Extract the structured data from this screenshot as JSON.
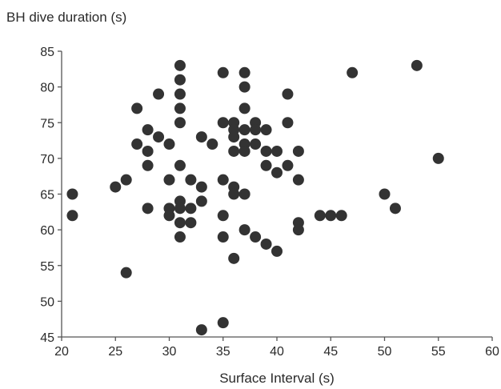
{
  "chart_data": {
    "type": "scatter",
    "title": "",
    "xlabel": "Surface Interval (s)",
    "ylabel": "BH dive duration (s)",
    "xlim": [
      20,
      60
    ],
    "ylim": [
      45,
      85
    ],
    "xticks": [
      20,
      25,
      30,
      35,
      40,
      45,
      50,
      55,
      60
    ],
    "yticks": [
      45,
      50,
      55,
      60,
      65,
      70,
      75,
      80,
      85
    ],
    "xtick_labels": [
      "20",
      "25",
      "30",
      "35",
      "40",
      "45",
      "50",
      "55",
      "60"
    ],
    "ytick_labels": [
      "45",
      "50",
      "55",
      "60",
      "65",
      "70",
      "75",
      "80",
      "85"
    ],
    "grid": false,
    "legend": "none",
    "marker_color": "#333333",
    "points": [
      [
        21,
        65
      ],
      [
        21,
        62
      ],
      [
        25,
        66
      ],
      [
        26,
        67
      ],
      [
        26,
        54
      ],
      [
        27,
        77
      ],
      [
        27,
        72
      ],
      [
        28,
        74
      ],
      [
        28,
        71
      ],
      [
        28,
        69
      ],
      [
        28,
        63
      ],
      [
        29,
        79
      ],
      [
        29,
        73
      ],
      [
        30,
        72
      ],
      [
        30,
        67
      ],
      [
        30,
        63
      ],
      [
        30,
        62
      ],
      [
        31,
        83
      ],
      [
        31,
        81
      ],
      [
        31,
        79
      ],
      [
        31,
        77
      ],
      [
        31,
        75
      ],
      [
        31,
        69
      ],
      [
        31,
        64
      ],
      [
        31,
        63
      ],
      [
        31,
        61
      ],
      [
        31,
        59
      ],
      [
        32,
        67
      ],
      [
        32,
        63
      ],
      [
        32,
        61
      ],
      [
        33,
        73
      ],
      [
        33,
        66
      ],
      [
        33,
        64
      ],
      [
        33,
        46
      ],
      [
        34,
        72
      ],
      [
        35,
        82
      ],
      [
        35,
        75
      ],
      [
        35,
        67
      ],
      [
        35,
        62
      ],
      [
        35,
        59
      ],
      [
        35,
        47
      ],
      [
        36,
        75
      ],
      [
        36,
        74
      ],
      [
        36,
        73
      ],
      [
        36,
        71
      ],
      [
        36,
        66
      ],
      [
        36,
        65
      ],
      [
        36,
        56
      ],
      [
        37,
        82
      ],
      [
        37,
        80
      ],
      [
        37,
        77
      ],
      [
        37,
        74
      ],
      [
        37,
        72
      ],
      [
        37,
        71
      ],
      [
        37,
        65
      ],
      [
        37,
        60
      ],
      [
        38,
        75
      ],
      [
        38,
        74
      ],
      [
        38,
        72
      ],
      [
        38,
        59
      ],
      [
        39,
        74
      ],
      [
        39,
        71
      ],
      [
        39,
        69
      ],
      [
        39,
        58
      ],
      [
        40,
        71
      ],
      [
        40,
        68
      ],
      [
        40,
        57
      ],
      [
        41,
        79
      ],
      [
        41,
        75
      ],
      [
        41,
        69
      ],
      [
        42,
        71
      ],
      [
        42,
        67
      ],
      [
        42,
        61
      ],
      [
        42,
        60
      ],
      [
        44,
        62
      ],
      [
        45,
        62
      ],
      [
        46,
        62
      ],
      [
        47,
        82
      ],
      [
        50,
        65
      ],
      [
        51,
        63
      ],
      [
        53,
        83
      ],
      [
        55,
        70
      ]
    ]
  }
}
